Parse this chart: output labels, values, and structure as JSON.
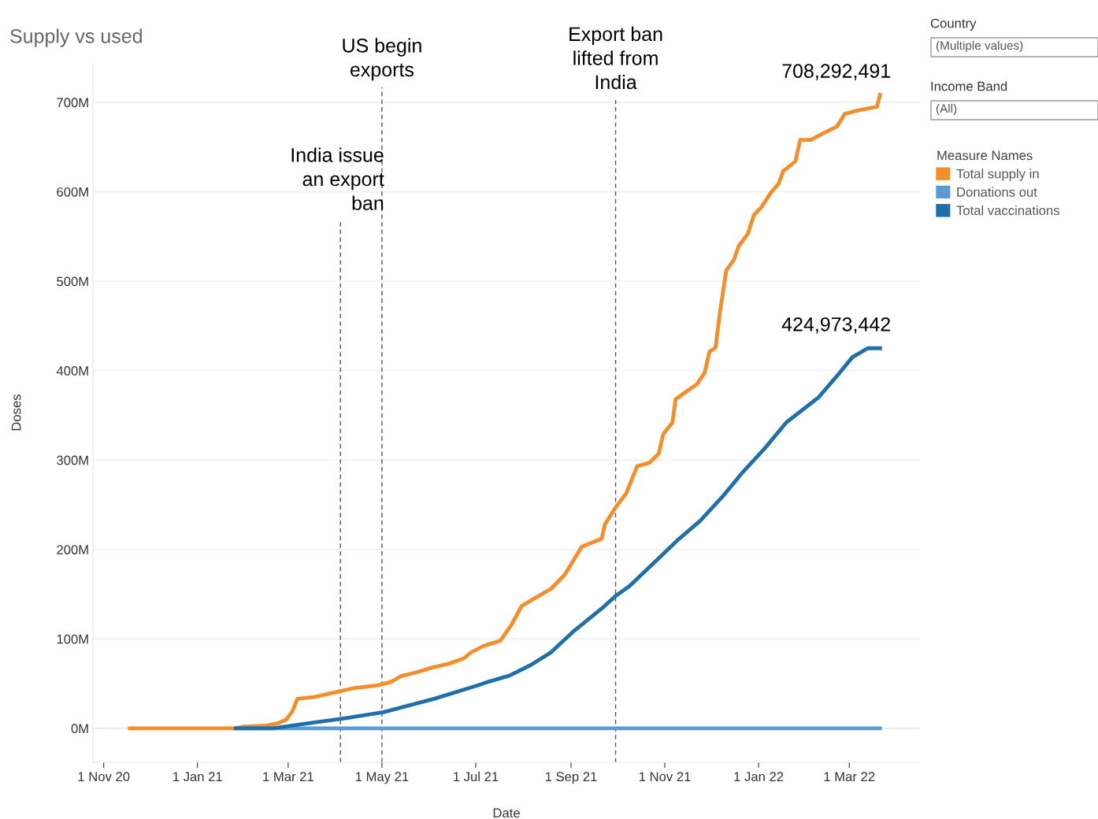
{
  "chart_data": {
    "type": "line",
    "title": "Supply vs used",
    "xlabel": "Date",
    "ylabel": "Doses",
    "legend_title": "Measure Names",
    "legend": "right",
    "grid": "y",
    "marker": "none",
    "line_style": "solid",
    "xlim": [
      "2020-10-25",
      "2022-04-16"
    ],
    "ylim": [
      -38,
      744
    ],
    "xticks": [
      {
        "value": "2020-11-01",
        "label": "1 Nov 20"
      },
      {
        "value": "2021-01-01",
        "label": "1 Jan 21"
      },
      {
        "value": "2021-03-01",
        "label": "1 Mar 21"
      },
      {
        "value": "2021-05-01",
        "label": "1 May 21"
      },
      {
        "value": "2021-07-01",
        "label": "1 Jul 21"
      },
      {
        "value": "2021-09-01",
        "label": "1 Sep 21"
      },
      {
        "value": "2021-11-01",
        "label": "1 Nov 21"
      },
      {
        "value": "2022-01-01",
        "label": "1 Jan 22"
      },
      {
        "value": "2022-03-01",
        "label": "1 Mar 22"
      }
    ],
    "yticks": [
      {
        "value": 0,
        "label": "0M"
      },
      {
        "value": 100,
        "label": "100M"
      },
      {
        "value": 200,
        "label": "200M"
      },
      {
        "value": 300,
        "label": "300M"
      },
      {
        "value": 400,
        "label": "400M"
      },
      {
        "value": 500,
        "label": "500M"
      },
      {
        "value": 600,
        "label": "600M"
      },
      {
        "value": 700,
        "label": "700M"
      }
    ],
    "series": [
      {
        "name": "Total supply in",
        "color": "#f28e2b",
        "x": [
          "2020-11-18",
          "2021-01-26",
          "2021-01-31",
          "2021-02-15",
          "2021-02-23",
          "2021-02-28",
          "2021-03-04",
          "2021-03-07",
          "2021-03-18",
          "2021-03-31",
          "2021-04-13",
          "2021-04-28",
          "2021-05-07",
          "2021-05-13",
          "2021-05-24",
          "2021-06-03",
          "2021-06-13",
          "2021-06-23",
          "2021-06-28",
          "2021-07-06",
          "2021-07-17",
          "2021-07-24",
          "2021-07-31",
          "2021-08-08",
          "2021-08-19",
          "2021-08-28",
          "2021-09-08",
          "2021-09-21",
          "2021-09-23",
          "2021-09-30",
          "2021-10-07",
          "2021-10-14",
          "2021-10-22",
          "2021-10-28",
          "2021-10-31",
          "2021-11-06",
          "2021-11-08",
          "2021-11-17",
          "2021-11-22",
          "2021-11-27",
          "2021-11-30",
          "2021-12-04",
          "2021-12-07",
          "2021-12-11",
          "2021-12-16",
          "2021-12-19",
          "2021-12-25",
          "2021-12-29",
          "2022-01-03",
          "2022-01-09",
          "2022-01-14",
          "2022-01-17",
          "2022-01-25",
          "2022-01-28",
          "2022-02-04",
          "2022-02-14",
          "2022-02-21",
          "2022-02-26",
          "2022-03-07",
          "2022-03-19",
          "2022-03-21"
        ],
        "values": [
          0,
          0,
          2,
          3,
          6,
          10,
          20,
          33,
          35,
          40,
          45,
          48,
          52,
          58,
          63,
          68,
          72,
          78,
          85,
          92,
          98,
          115,
          137,
          145,
          156,
          172,
          203,
          212,
          228,
          247,
          263,
          293,
          297,
          307,
          329,
          342,
          368,
          379,
          385,
          398,
          421,
          426,
          467,
          512,
          524,
          539,
          553,
          574,
          583,
          599,
          609,
          623,
          634,
          658,
          658,
          667,
          673,
          687,
          691,
          695,
          708.292491
        ]
      },
      {
        "name": "Donations out",
        "color": "#5b9bd5",
        "x": [
          "2021-01-26",
          "2021-09-30",
          "2022-03-21"
        ],
        "values": [
          0,
          0,
          0
        ]
      },
      {
        "name": "Total vaccinations",
        "color": "#1f6fa8",
        "x": [
          "2021-01-26",
          "2021-02-19",
          "2021-03-07",
          "2021-04-06",
          "2021-05-02",
          "2021-05-15",
          "2021-06-04",
          "2021-07-04",
          "2021-07-09",
          "2021-07-23",
          "2021-08-06",
          "2021-08-19",
          "2021-09-03",
          "2021-09-21",
          "2021-09-30",
          "2021-10-09",
          "2021-10-28",
          "2021-11-09",
          "2021-11-24",
          "2021-12-09",
          "2021-12-21",
          "2022-01-05",
          "2022-01-19",
          "2022-02-09",
          "2022-02-21",
          "2022-03-03",
          "2022-03-13",
          "2022-03-21"
        ],
        "values": [
          0,
          0,
          4,
          11,
          18,
          24,
          33,
          49,
          52,
          59,
          71,
          85,
          109,
          134,
          148,
          159,
          190,
          210,
          232,
          260,
          285,
          313,
          342,
          370,
          394,
          415,
          425,
          424.973442
        ]
      }
    ],
    "ref_lines": [
      {
        "axis": "y",
        "value": 0,
        "color": "#c8c8c8",
        "line_style": "dotted"
      },
      {
        "axis": "x",
        "value": "2021-04-04",
        "label": "India issue\nan export\nban",
        "color": "#555555",
        "line_style": "dashed"
      },
      {
        "axis": "x",
        "value": "2021-05-01",
        "label": "US begin\nexports",
        "color": "#555555",
        "line_style": "dashed"
      },
      {
        "axis": "x",
        "value": "2021-09-30",
        "label": "Export ban\nlifted from\nIndia",
        "color": "#555555",
        "line_style": "dashed"
      }
    ],
    "annotations": [
      {
        "text": "708,292,491",
        "x": "2022-03-21",
        "y": 708.292491
      },
      {
        "text": "424,973,442",
        "x": "2022-03-21",
        "y": 424.973442
      },
      "Country",
      "(Multiple values)",
      "Income Band",
      "(All)"
    ]
  }
}
